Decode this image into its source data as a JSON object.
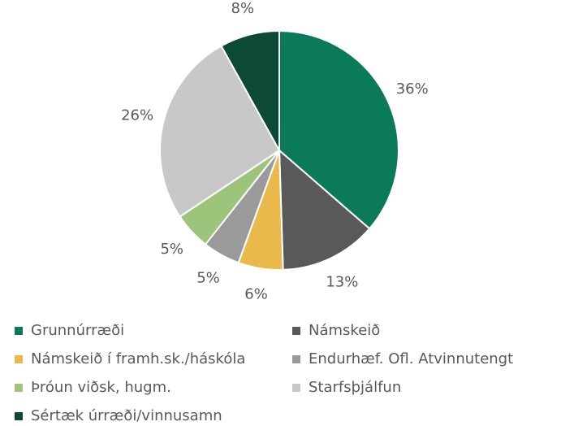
{
  "chart_data": {
    "type": "pie",
    "categories": [
      "Grunnúrræði",
      "Námskeið",
      "Námskeið í framh.sk./háskóla",
      "Endurhæf. Ofl. Atvinnutengt",
      "Þróun viðsk, hugm.",
      "Starfsþjálfun",
      "Sértæk úrræði/vinnusamn"
    ],
    "values": [
      36,
      13,
      6,
      5,
      5,
      26,
      8
    ],
    "value_labels": [
      "36%",
      "13%",
      "6%",
      "5%",
      "5%",
      "26%",
      "8%"
    ],
    "colors": [
      "#0b7a5a",
      "#595959",
      "#e9b94c",
      "#9a9a9a",
      "#9cc47b",
      "#c8c8c8",
      "#0c4a35"
    ],
    "legend": "bottom"
  }
}
